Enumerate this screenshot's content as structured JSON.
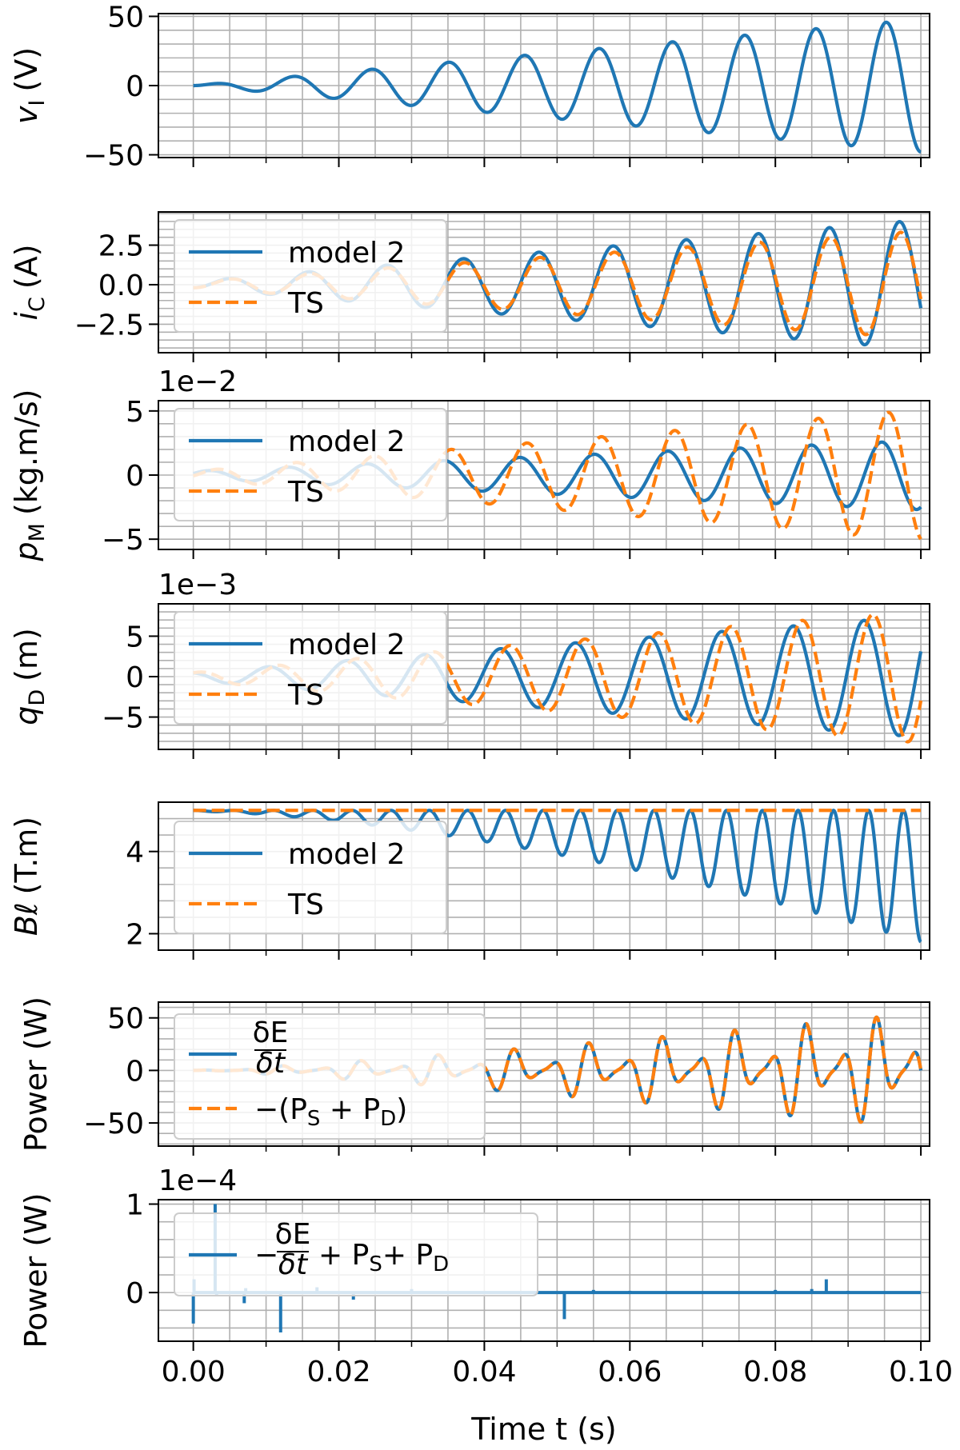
{
  "colors": {
    "series_blue": "#1f77b4",
    "series_orange": "#ff7f0e",
    "grid": "#b0b0b0",
    "axes": "#000000",
    "legend_face": "#ffffff",
    "legend_edge": "#cccccc"
  },
  "chart_data": [
    {
      "id": "vI",
      "type": "line",
      "ylabel": "v",
      "ylabel_sub": "I",
      "ylabel_unit": "(V)",
      "ylim": [
        -52,
        52
      ],
      "y_ticks": [
        -50,
        0,
        50
      ],
      "y_tick_labels": [
        "−50",
        "0",
        "50"
      ],
      "offset_text": "",
      "series": [
        {
          "name": "v_I",
          "style": "solid",
          "color": "#1f77b4",
          "signal": {
            "kind": "chirp",
            "amp_start": 0,
            "amp_end": 48,
            "f_start": 90,
            "f_end": 105,
            "phase": 0,
            "noise": 0
          }
        }
      ],
      "legend": null
    },
    {
      "id": "iC",
      "type": "line",
      "ylabel": "i",
      "ylabel_sub": "C",
      "ylabel_unit": "(A)",
      "ylim": [
        -4.3,
        4.6
      ],
      "y_ticks": [
        -2.5,
        0.0,
        2.5
      ],
      "y_tick_labels": [
        "−2.5",
        "0.0",
        "2.5"
      ],
      "offset_text": "",
      "series": [
        {
          "name": "model 2",
          "style": "solid",
          "color": "#1f77b4",
          "signal": {
            "kind": "chirp",
            "amp_start": 0.2,
            "amp_end": 4.1,
            "f_start": 90,
            "f_end": 105,
            "phase": -1.2,
            "noise": 0
          }
        },
        {
          "name": "TS",
          "style": "dashed",
          "color": "#ff7f0e",
          "signal": {
            "kind": "chirp",
            "amp_start": 0.2,
            "amp_end": 3.4,
            "f_start": 90,
            "f_end": 105,
            "phase": -1.3,
            "noise": 0
          }
        }
      ],
      "legend": {
        "location": "upper-left",
        "entries": [
          "model 2",
          "TS"
        ]
      }
    },
    {
      "id": "pM",
      "type": "line",
      "ylabel": "p",
      "ylabel_sub": "M",
      "ylabel_unit": "(kg.m/s)",
      "ylim": [
        -5.8,
        5.8
      ],
      "y_ticks": [
        -5,
        0,
        5
      ],
      "y_tick_labels": [
        "−5",
        "0",
        "5"
      ],
      "offset_text": "1e−2",
      "series": [
        {
          "name": "model 2",
          "style": "solid",
          "color": "#1f77b4",
          "signal": {
            "kind": "chirp",
            "amp_start": 0.3,
            "amp_end": 2.7,
            "f_start": 90,
            "f_end": 105,
            "phase": 0.4,
            "noise": 0
          }
        },
        {
          "name": "TS",
          "style": "dashed",
          "color": "#ff7f0e",
          "signal": {
            "kind": "chirp",
            "amp_start": 0.3,
            "amp_end": 5.1,
            "f_start": 90,
            "f_end": 105,
            "phase": -0.2,
            "noise": 0
          }
        }
      ],
      "legend": {
        "location": "upper-left",
        "entries": [
          "model 2",
          "TS"
        ]
      }
    },
    {
      "id": "qD",
      "type": "line",
      "ylabel": "q",
      "ylabel_sub": "D",
      "ylabel_unit": "(m)",
      "ylim": [
        -9,
        9
      ],
      "y_ticks": [
        -5,
        0,
        5
      ],
      "y_tick_labels": [
        "−5",
        "0",
        "5"
      ],
      "offset_text": "1e−3",
      "series": [
        {
          "name": "model 2",
          "style": "solid",
          "color": "#1f77b4",
          "signal": {
            "kind": "chirp",
            "amp_start": 0.5,
            "amp_end": 7.5,
            "f_start": 90,
            "f_end": 105,
            "phase": 2.0,
            "noise": 0
          }
        },
        {
          "name": "TS",
          "style": "dashed",
          "color": "#ff7f0e",
          "signal": {
            "kind": "chirp",
            "amp_start": 0.5,
            "amp_end": 8.2,
            "f_start": 90,
            "f_end": 105,
            "phase": 1.2,
            "noise": 0
          }
        }
      ],
      "legend": {
        "location": "upper-left",
        "entries": [
          "model 2",
          "TS"
        ]
      }
    },
    {
      "id": "Bl",
      "type": "line",
      "ylabel": "Bℓ",
      "ylabel_sub": "",
      "ylabel_unit": "(T.m)",
      "ylim": [
        1.6,
        5.2
      ],
      "y_ticks": [
        2,
        4
      ],
      "y_tick_labels": [
        "2",
        "4"
      ],
      "offset_text": "",
      "series": [
        {
          "name": "model 2",
          "style": "solid",
          "color": "#1f77b4",
          "signal": {
            "kind": "dips",
            "base": 5.0,
            "depth_start": 0.02,
            "depth_end": 3.2,
            "f_start": 90,
            "f_end": 105,
            "phase": 0,
            "noise": 0
          }
        },
        {
          "name": "TS",
          "style": "dashed",
          "color": "#ff7f0e",
          "signal": {
            "kind": "const",
            "value": 5.0
          }
        }
      ],
      "legend": {
        "location": "center-left",
        "entries": [
          "model 2",
          "TS"
        ]
      }
    },
    {
      "id": "power",
      "type": "line",
      "ylabel": "Power (W)",
      "ylabel_sub": "",
      "ylabel_unit": "",
      "ylim": [
        -72,
        65
      ],
      "y_ticks": [
        -50,
        0,
        50
      ],
      "y_tick_labels": [
        "−50",
        "0",
        "50"
      ],
      "offset_text": "",
      "series": [
        {
          "name": "δE/δt",
          "style": "solid",
          "color": "#1f77b4",
          "signal": {
            "kind": "power",
            "amp_start": 0,
            "amp_end": 62,
            "f_start": 90,
            "f_end": 105,
            "phase": 0,
            "noise": 0
          }
        },
        {
          "name": "−(P_S + P_D)",
          "style": "dashed",
          "color": "#ff7f0e",
          "signal": {
            "kind": "power",
            "amp_start": 0,
            "amp_end": 62,
            "f_start": 90,
            "f_end": 105,
            "phase": 0,
            "noise": 0
          }
        }
      ],
      "legend": {
        "location": "upper-left",
        "entries": [
          "δE/δt",
          "−(PS + PD)"
        ]
      }
    },
    {
      "id": "residual",
      "type": "line",
      "ylabel": "Power (W)",
      "ylabel_sub": "",
      "ylabel_unit": "",
      "ylim": [
        -0.55,
        1.05
      ],
      "y_ticks": [
        0,
        1
      ],
      "y_tick_labels": [
        "0",
        "1"
      ],
      "offset_text": "1e−4",
      "series": [
        {
          "name": "−δE/δt + P_S + P_D",
          "style": "solid",
          "color": "#1f77b4",
          "signal": {
            "kind": "spikes",
            "spikes": [
              [
                0.0,
                -0.35
              ],
              [
                0.0001,
                0.15
              ],
              [
                0.003,
                1.0
              ],
              [
                0.0032,
                -0.03
              ],
              [
                0.007,
                -0.12
              ],
              [
                0.0072,
                0.05
              ],
              [
                0.012,
                -0.45
              ],
              [
                0.017,
                0.06
              ],
              [
                0.022,
                -0.08
              ],
              [
                0.03,
                0.04
              ],
              [
                0.051,
                -0.3
              ],
              [
                0.055,
                0.03
              ],
              [
                0.06,
                0.02
              ],
              [
                0.08,
                0.03
              ],
              [
                0.085,
                0.04
              ],
              [
                0.087,
                0.15
              ],
              [
                0.09,
                0.02
              ]
            ]
          }
        }
      ],
      "legend": {
        "location": "upper-left",
        "entries": [
          "−δE/δt + PS + PD"
        ]
      }
    }
  ],
  "x_axis": {
    "xlim": [
      -0.0048,
      0.1012
    ],
    "ticks": [
      0.0,
      0.02,
      0.04,
      0.06,
      0.08,
      0.1
    ],
    "tick_labels": [
      "0.00",
      "0.02",
      "0.04",
      "0.06",
      "0.08",
      "0.10"
    ],
    "minor_step": 0.005,
    "xlabel": "Time t (s)"
  },
  "legend_labels": {
    "model2": "model 2",
    "ts": "TS",
    "dEdt_num": "δE",
    "dEdt_den": "δt",
    "ps_pd": "−(P",
    "ps_pd_s": "S",
    "ps_pd_plus": " + P",
    "ps_pd_d": "D",
    "ps_pd_close": ")",
    "resid_minus": "−",
    "resid_plus": "+ P",
    "resid_s": "S",
    "resid_d": "D"
  }
}
